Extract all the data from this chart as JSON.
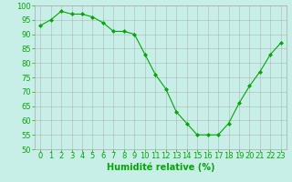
{
  "x": [
    0,
    1,
    2,
    3,
    4,
    5,
    6,
    7,
    8,
    9,
    10,
    11,
    12,
    13,
    14,
    15,
    16,
    17,
    18,
    19,
    20,
    21,
    22,
    23
  ],
  "y": [
    93,
    95,
    98,
    97,
    97,
    96,
    94,
    91,
    91,
    90,
    83,
    76,
    71,
    63,
    59,
    55,
    55,
    55,
    59,
    66,
    72,
    77,
    83,
    87
  ],
  "line_color": "#00aa00",
  "marker": "D",
  "marker_size": 2,
  "bg_color": "#c8eee8",
  "grid_color": "#aaaaaa",
  "xlabel": "Humidité relative (%)",
  "xlabel_color": "#00aa00",
  "xlabel_fontsize": 7,
  "tick_color": "#00aa00",
  "tick_fontsize": 6,
  "ylim": [
    50,
    100
  ],
  "xlim": [
    -0.5,
    23.5
  ],
  "yticks": [
    50,
    55,
    60,
    65,
    70,
    75,
    80,
    85,
    90,
    95,
    100
  ],
  "xticks": [
    0,
    1,
    2,
    3,
    4,
    5,
    6,
    7,
    8,
    9,
    10,
    11,
    12,
    13,
    14,
    15,
    16,
    17,
    18,
    19,
    20,
    21,
    22,
    23
  ]
}
